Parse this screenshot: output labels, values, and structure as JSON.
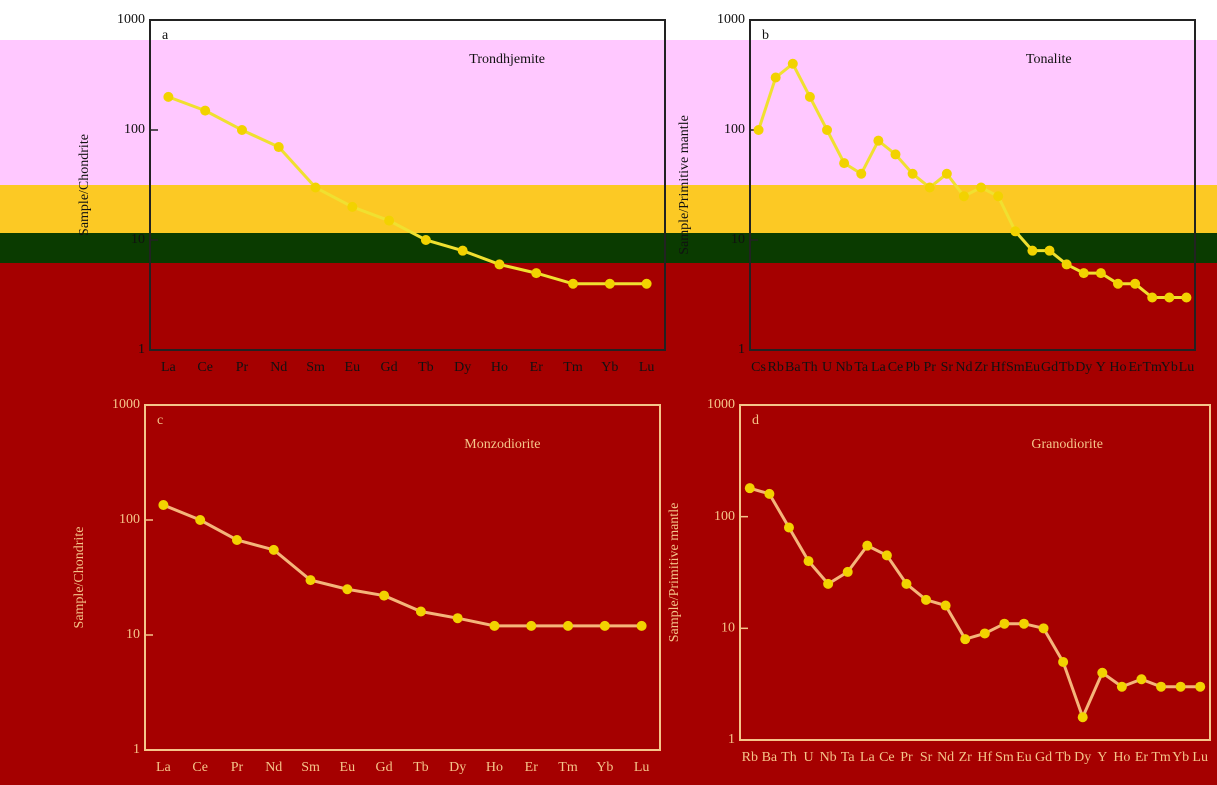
{
  "chart_data": [
    {
      "type": "line",
      "label": "a",
      "title": "Trondhjemite",
      "ylabel": "Sample/Chondrite",
      "categories": [
        "La",
        "Ce",
        "Pr",
        "Nd",
        "Sm",
        "Eu",
        "Gd",
        "Tb",
        "Dy",
        "Ho",
        "Er",
        "Tm",
        "Yb",
        "Lu"
      ],
      "series": [
        {
          "color": "#f0e030",
          "values": [
            200,
            150,
            100,
            70,
            30,
            20,
            15,
            10,
            8,
            6,
            5,
            4,
            4,
            4
          ]
        }
      ],
      "ylim": [
        1,
        1000
      ],
      "yticks": [
        1,
        10,
        100,
        1000
      ],
      "log_scale": true,
      "frame_color": "#222222",
      "text_color": "#111111"
    },
    {
      "type": "line",
      "label": "b",
      "title": "Tonalite",
      "ylabel": "Sample/Primitive mantle",
      "categories": [
        "Cs",
        "Rb",
        "Ba",
        "Th",
        "U",
        "Nb",
        "Ta",
        "La",
        "Ce",
        "Pb",
        "Pr",
        "Sr",
        "Nd",
        "Zr",
        "Hf",
        "Sm",
        "Eu",
        "Gd",
        "Tb",
        "Dy",
        "Y",
        "Ho",
        "Er",
        "Tm",
        "Yb",
        "Lu"
      ],
      "series": [
        {
          "color": "#f0e030",
          "values": [
            100,
            300,
            400,
            200,
            100,
            50,
            40,
            80,
            60,
            40,
            30,
            40,
            25,
            30,
            25,
            12,
            8,
            8,
            6,
            5,
            5,
            4,
            4,
            3,
            3,
            3
          ]
        }
      ],
      "ylim": [
        1,
        1000
      ],
      "yticks": [
        1,
        10,
        100,
        1000
      ],
      "log_scale": true,
      "frame_color": "#222222",
      "text_color": "#111111"
    },
    {
      "type": "line",
      "label": "c",
      "title": "Monzodiorite",
      "ylabel": "Sample/Chondrite",
      "categories": [
        "La",
        "Ce",
        "Pr",
        "Nd",
        "Sm",
        "Eu",
        "Gd",
        "Tb",
        "Dy",
        "Ho",
        "Er",
        "Tm",
        "Yb",
        "Lu"
      ],
      "series": [
        {
          "color": "#f5b57a",
          "values": [
            135,
            100,
            67,
            55,
            30,
            25,
            22,
            16,
            14,
            12,
            12,
            12,
            12,
            12
          ]
        }
      ],
      "ylim": [
        1,
        1000
      ],
      "yticks": [
        1,
        10,
        100,
        1000
      ],
      "log_scale": true,
      "frame_color": "#f5c58a",
      "text_color": "#f5c58a"
    },
    {
      "type": "line",
      "label": "d",
      "title": "Granodiorite",
      "ylabel": "Sample/Primitive mantle",
      "categories": [
        "Rb",
        "Ba",
        "Th",
        "U",
        "Nb",
        "Ta",
        "La",
        "Ce",
        "Pr",
        "Sr",
        "Nd",
        "Zr",
        "Hf",
        "Sm",
        "Eu",
        "Gd",
        "Tb",
        "Dy",
        "Y",
        "Ho",
        "Er",
        "Tm",
        "Yb",
        "Lu"
      ],
      "series": [
        {
          "color": "#f5b57a",
          "values": [
            180,
            160,
            80,
            40,
            25,
            32,
            55,
            45,
            25,
            18,
            16,
            8,
            9,
            11,
            11,
            10,
            5,
            1.6,
            4,
            3,
            3.5,
            3,
            3,
            3
          ]
        }
      ],
      "ylim": [
        1,
        1000
      ],
      "yticks": [
        1,
        10,
        100,
        1000
      ],
      "log_scale": true,
      "frame_color": "#f5c58a",
      "text_color": "#f5c58a"
    }
  ]
}
